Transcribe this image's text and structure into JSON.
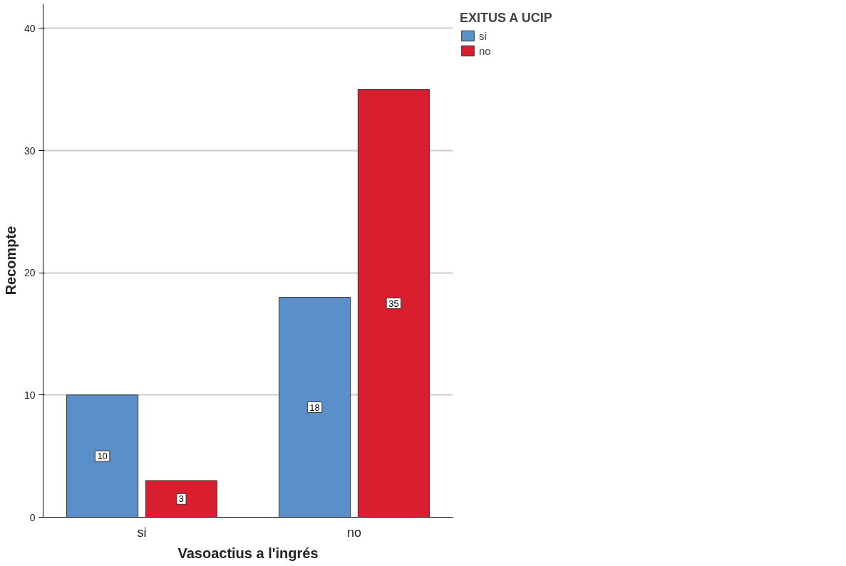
{
  "chart_data": {
    "type": "bar",
    "xlabel": "Vasoactius a l'ingrés",
    "ylabel": "Recompte",
    "legend_title": "EXITUS A UCIP",
    "categories": [
      "si",
      "no"
    ],
    "series": [
      {
        "name": "si",
        "color": "#5b8fc9",
        "values": [
          10,
          18
        ]
      },
      {
        "name": "no",
        "color": "#d81e2f",
        "values": [
          3,
          35
        ]
      }
    ],
    "ylim": [
      0,
      42
    ],
    "yticks": [
      0,
      10,
      20,
      30,
      40
    ],
    "grid": "y",
    "legend": "top right",
    "data_labels": true
  }
}
